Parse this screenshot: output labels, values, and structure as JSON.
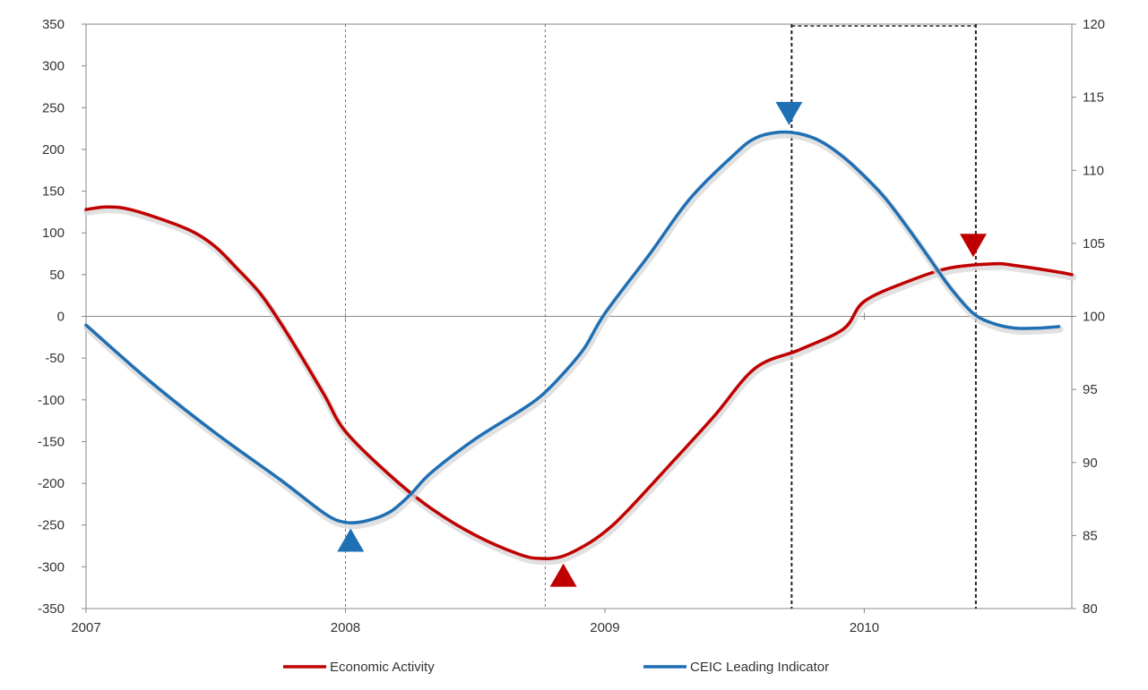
{
  "chart_data": {
    "type": "line",
    "xlim": [
      2007,
      2010.8
    ],
    "x_ticks": [
      2007,
      2008,
      2009,
      2010
    ],
    "y_left": {
      "lim": [
        -350,
        350
      ],
      "ticks": [
        350,
        300,
        250,
        200,
        150,
        100,
        50,
        0,
        -50,
        -100,
        -150,
        -200,
        -250,
        -300,
        -350
      ]
    },
    "y_right": {
      "lim": [
        80,
        120
      ],
      "ticks": [
        120,
        115,
        110,
        105,
        100,
        95,
        90,
        85,
        80
      ]
    },
    "legend_position": "bottom",
    "series": [
      {
        "name": "Economic Activity",
        "axis": "left",
        "color": "#c00000",
        "points": [
          [
            2007.0,
            128
          ],
          [
            2007.08,
            131
          ],
          [
            2007.17,
            128
          ],
          [
            2007.33,
            112
          ],
          [
            2007.42,
            100
          ],
          [
            2007.5,
            83
          ],
          [
            2007.58,
            58
          ],
          [
            2007.67,
            28
          ],
          [
            2007.75,
            -8
          ],
          [
            2007.83,
            -48
          ],
          [
            2007.92,
            -95
          ],
          [
            2008.0,
            -138
          ],
          [
            2008.17,
            -190
          ],
          [
            2008.33,
            -230
          ],
          [
            2008.5,
            -262
          ],
          [
            2008.67,
            -285
          ],
          [
            2008.75,
            -290
          ],
          [
            2008.83,
            -288
          ],
          [
            2008.92,
            -275
          ],
          [
            2009.0,
            -258
          ],
          [
            2009.08,
            -235
          ],
          [
            2009.25,
            -178
          ],
          [
            2009.42,
            -120
          ],
          [
            2009.58,
            -62
          ],
          [
            2009.75,
            -40
          ],
          [
            2009.92,
            -15
          ],
          [
            2010.0,
            18
          ],
          [
            2010.17,
            42
          ],
          [
            2010.33,
            58
          ],
          [
            2010.5,
            63
          ],
          [
            2010.58,
            61
          ],
          [
            2010.75,
            53
          ],
          [
            2010.8,
            50
          ]
        ]
      },
      {
        "name": "CEIC Leading Indicator",
        "axis": "right",
        "color": "#1f6fb4",
        "points": [
          [
            2007.0,
            99.4
          ],
          [
            2007.25,
            95.5
          ],
          [
            2007.5,
            92.0
          ],
          [
            2007.75,
            88.8
          ],
          [
            2007.92,
            86.5
          ],
          [
            2008.0,
            85.9
          ],
          [
            2008.08,
            86.0
          ],
          [
            2008.17,
            86.6
          ],
          [
            2008.25,
            87.8
          ],
          [
            2008.33,
            89.3
          ],
          [
            2008.5,
            91.6
          ],
          [
            2008.67,
            93.5
          ],
          [
            2008.75,
            94.5
          ],
          [
            2008.83,
            95.9
          ],
          [
            2008.92,
            97.8
          ],
          [
            2009.0,
            100.2
          ],
          [
            2009.17,
            104.2
          ],
          [
            2009.33,
            108.1
          ],
          [
            2009.5,
            111.1
          ],
          [
            2009.58,
            112.2
          ],
          [
            2009.67,
            112.6
          ],
          [
            2009.75,
            112.5
          ],
          [
            2009.83,
            112.0
          ],
          [
            2009.92,
            110.9
          ],
          [
            2010.0,
            109.6
          ],
          [
            2010.08,
            108.1
          ],
          [
            2010.17,
            106.0
          ],
          [
            2010.25,
            104.0
          ],
          [
            2010.33,
            102.0
          ],
          [
            2010.42,
            100.2
          ],
          [
            2010.5,
            99.5
          ],
          [
            2010.58,
            99.2
          ],
          [
            2010.67,
            99.2
          ],
          [
            2010.75,
            99.3
          ]
        ]
      }
    ],
    "markers": [
      {
        "x": 2008.02,
        "y": -268,
        "axis": "left",
        "direction": "up",
        "color": "#1f6fb4"
      },
      {
        "x": 2008.84,
        "y": -310,
        "axis": "left",
        "direction": "up",
        "color": "#c00000"
      },
      {
        "x": 2009.71,
        "y": 243,
        "axis": "left",
        "direction": "down",
        "color": "#1f6fb4"
      },
      {
        "x": 2010.42,
        "y": 85,
        "axis": "left",
        "direction": "down",
        "color": "#c00000"
      }
    ],
    "vertical_lines": [
      {
        "x": 2008.0,
        "style": "thin"
      },
      {
        "x": 2008.77,
        "style": "thin"
      },
      {
        "x": 2009.72,
        "style": "bold"
      },
      {
        "x": 2010.43,
        "style": "bold"
      }
    ],
    "shaded_box": {
      "x_from": 2009.72,
      "x_to": 2010.43
    }
  }
}
